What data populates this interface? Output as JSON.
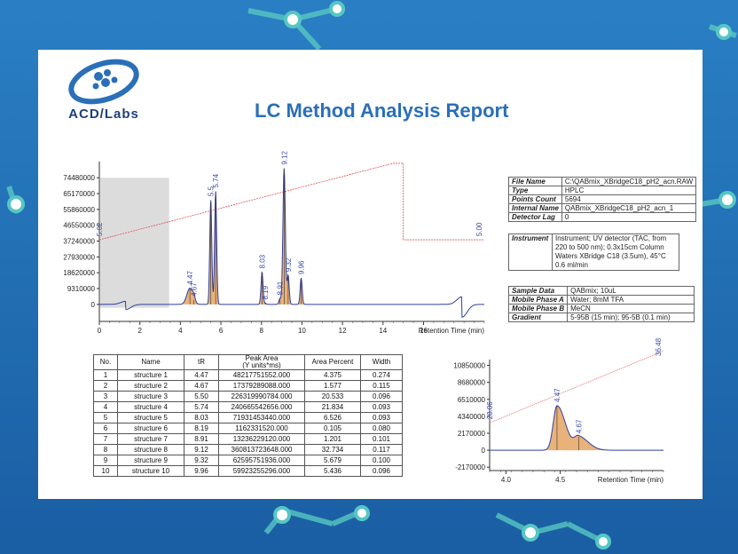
{
  "report": {
    "title": "LC Method Analysis Report",
    "brand": "ACD/Labs"
  },
  "colors": {
    "background": "#1f6fb5",
    "title": "#2a6fb8",
    "trace": "#2f3f9e",
    "gradient": "#e05050",
    "peak_fill": "#e8b27a",
    "label": "#3a4aa8"
  },
  "info": {
    "file": [
      {
        "label": "File Name",
        "value": "C:\\QABmix_XBridgeC18_pH2_acn.RAW"
      },
      {
        "label": "Type",
        "value": "HPLC"
      },
      {
        "label": "Points Count",
        "value": "5694"
      },
      {
        "label": "Internal Name",
        "value": "QABmix_XBridgeC18_pH2_acn_1"
      },
      {
        "label": "Detector Lag",
        "value": "0"
      }
    ],
    "instrument": {
      "label": "Instrument",
      "value": "Instrument; UV detector (TAC, from 220 to 500 nm); 0.3x15cm Column Waters XBridge C18 (3.5um), 45°C 0.6 ml/min"
    },
    "sample": [
      {
        "label": "Sample Data",
        "value": "QABmix; 10uL"
      },
      {
        "label": "Mobile Phase A",
        "value": "Water; 8mM TFA"
      },
      {
        "label": "Mobile Phase B",
        "value": "MeCN"
      },
      {
        "label": "Gradient",
        "value": "5-95B (15 min); 95-5B (0.1 min)"
      }
    ]
  },
  "table": {
    "headers": [
      "No.",
      "Name",
      "tR",
      "Peak Area\n(Y units*ms)",
      "Area Percent",
      "Width"
    ],
    "rows": [
      [
        "1",
        "structure 1",
        "4.47",
        "48217751552.000",
        "4.375",
        "0.274"
      ],
      [
        "2",
        "structure 2",
        "4.67",
        "17379289088.000",
        "1.577",
        "0.115"
      ],
      [
        "3",
        "structure 3",
        "5.50",
        "226319990784.000",
        "20.533",
        "0.096"
      ],
      [
        "4",
        "structure 4",
        "5.74",
        "240665542656.000",
        "21.834",
        "0.093"
      ],
      [
        "5",
        "structure 5",
        "8.03",
        "71931453440.000",
        "6.526",
        "0.093"
      ],
      [
        "6",
        "structure 6",
        "8.19",
        "1162331520.000",
        "0.105",
        "0.080"
      ],
      [
        "7",
        "structure 7",
        "8.91",
        "13236229120.000",
        "1.201",
        "0.101"
      ],
      [
        "8",
        "structure 8",
        "9.12",
        "360813723648.000",
        "32.734",
        "0.117"
      ],
      [
        "9",
        "structure 9",
        "9.32",
        "62595751936.000",
        "5.679",
        "0.100"
      ],
      [
        "10",
        "structure 10",
        "9.96",
        "59923255296.000",
        "5.436",
        "0.096"
      ]
    ]
  },
  "chart_data": [
    {
      "type": "line",
      "xlabel": "Retention Time (min)",
      "xlim": [
        0,
        19
      ],
      "ylim": [
        -10000000,
        84000000
      ],
      "x_ticks": [
        "0",
        "2",
        "4",
        "6",
        "8",
        "10",
        "12",
        "14",
        "16"
      ],
      "x_tick_values": [
        0,
        2,
        4,
        6,
        8,
        10,
        12,
        14,
        16
      ],
      "y_ticks": [
        "74480000",
        "65170000",
        "55860000",
        "46550000",
        "37240000",
        "27930000",
        "18620000",
        "9310000",
        "0"
      ],
      "y_tick_values": [
        74480000,
        65170000,
        55860000,
        46550000,
        37240000,
        27930000,
        18620000,
        9310000,
        0
      ],
      "shaded_region_x": [
        0,
        3.4
      ],
      "peaks": [
        {
          "label": "4.47",
          "x": 4.47,
          "height": 9500000,
          "width": 0.15
        },
        {
          "label": "4.67",
          "x": 4.67,
          "height": 2600000,
          "width": 0.06
        },
        {
          "label": "5.5",
          "x": 5.5,
          "height": 61500000,
          "width": 0.05
        },
        {
          "label": "5.74",
          "x": 5.74,
          "height": 66500000,
          "width": 0.05
        },
        {
          "label": "8.03",
          "x": 8.03,
          "height": 19000000,
          "width": 0.05
        },
        {
          "label": "8.19",
          "x": 8.19,
          "height": 700000,
          "width": 0.04
        },
        {
          "label": "8.91",
          "x": 8.91,
          "height": 3400000,
          "width": 0.05
        },
        {
          "label": "9.12",
          "x": 9.12,
          "height": 80000000,
          "width": 0.06
        },
        {
          "label": "9.32",
          "x": 9.32,
          "height": 17000000,
          "width": 0.05
        },
        {
          "label": "9.96",
          "x": 9.96,
          "height": 15500000,
          "width": 0.05
        }
      ],
      "gradient_line": [
        [
          0,
          38000000
        ],
        [
          14.5,
          83000000
        ],
        [
          14.5,
          83000000
        ],
        [
          15,
          83000000
        ],
        [
          15,
          38000000
        ],
        [
          19,
          38000000
        ]
      ],
      "gradient_labels": [
        {
          "label": "5.02",
          "x": 0,
          "y": 38000000
        },
        {
          "label": "5.00",
          "x": 19,
          "y": 38000000
        }
      ],
      "baseline_disturbances": [
        {
          "x": 1.3,
          "y": -3000000,
          "width": 0.25
        },
        {
          "x": 17.9,
          "y": -7500000,
          "width": 0.25
        }
      ]
    },
    {
      "type": "line",
      "xlabel": "Retention Time (min)",
      "xlim": [
        3.85,
        5.45
      ],
      "ylim": [
        -2600000,
        11600000
      ],
      "x_ticks": [
        "4.0",
        "4.5"
      ],
      "x_tick_values": [
        4.0,
        4.5
      ],
      "y_ticks": [
        "10850000",
        "8680000",
        "6510000",
        "4340000",
        "2170000",
        "0",
        "-2170000"
      ],
      "y_tick_values": [
        10850000,
        8680000,
        6510000,
        4340000,
        2170000,
        0,
        -2170000
      ],
      "peaks": [
        {
          "label": "4.47",
          "x": 4.47,
          "height": 5700000
        },
        {
          "label": "4.67",
          "x": 4.67,
          "height": 1700000
        }
      ],
      "gradient_line": [
        [
          3.85,
          3500000
        ],
        [
          5.45,
          12700000
        ]
      ],
      "gradient_labels": [
        {
          "label": "28.06",
          "x": 3.85,
          "y": 3500000
        },
        {
          "label": "36.48",
          "x": 5.45,
          "y": 11600000
        }
      ]
    }
  ]
}
